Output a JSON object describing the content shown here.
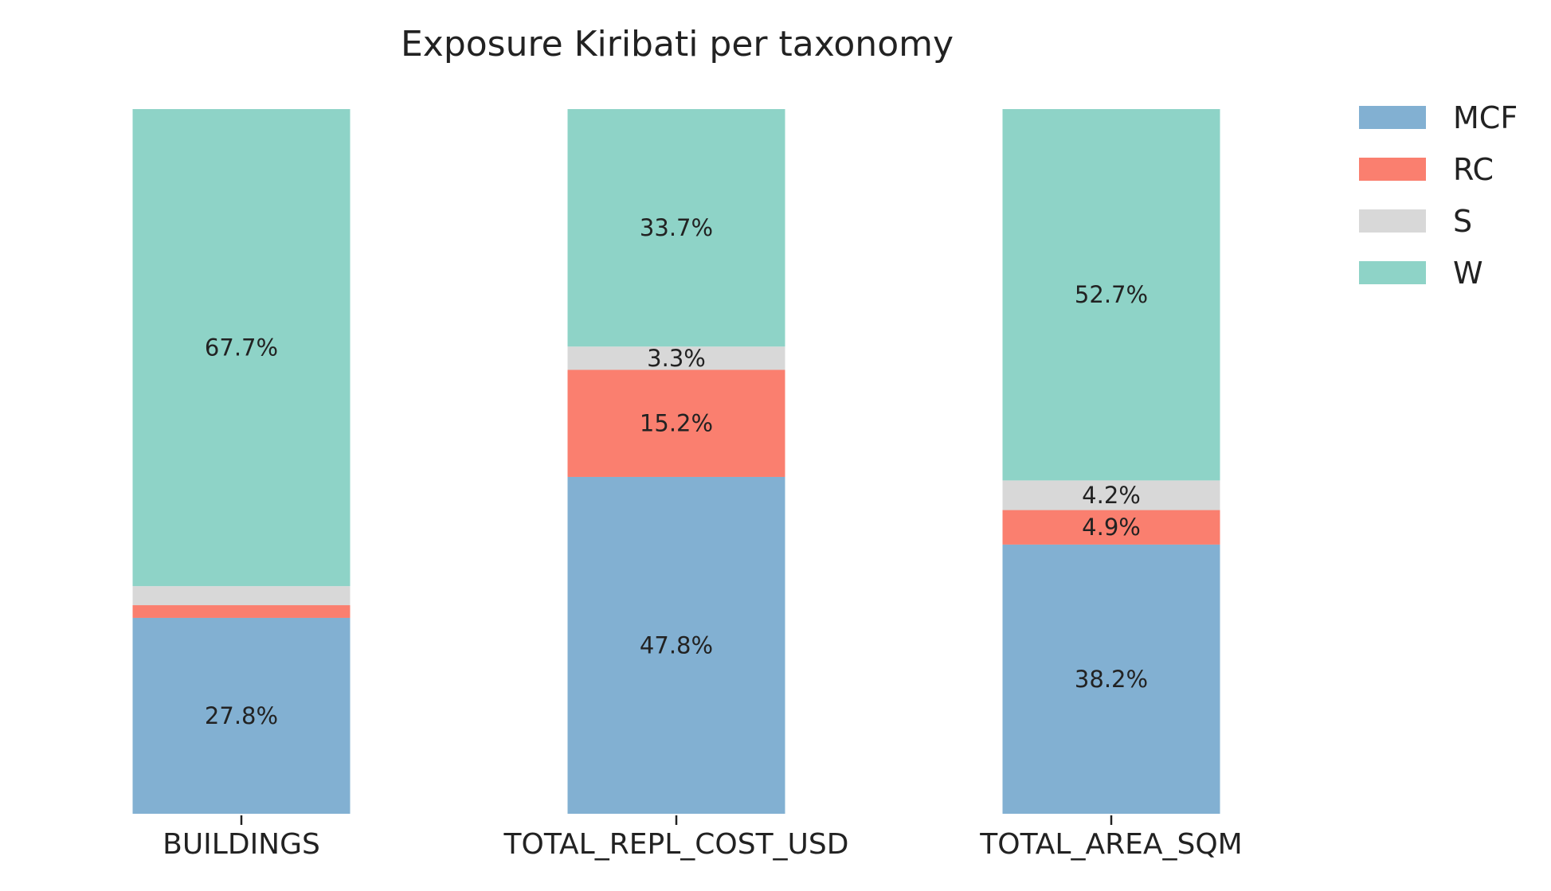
{
  "chart_data": {
    "type": "bar",
    "stacked": true,
    "normalized": true,
    "title": "Exposure Kiribati per taxonomy",
    "xlabel": "",
    "ylabel": "",
    "categories": [
      "BUILDINGS",
      "TOTAL_REPL_COST_USD",
      "TOTAL_AREA_SQM"
    ],
    "ylim": [
      0,
      100
    ],
    "grid": false,
    "legend_position": "top-right",
    "series": [
      {
        "name": "MCF",
        "color": "#82b0d2",
        "values": [
          27.8,
          47.8,
          38.2
        ],
        "labels": [
          "27.8%",
          "47.8%",
          "38.2%"
        ]
      },
      {
        "name": "RC",
        "color": "#fa7f6f",
        "values": [
          1.8,
          15.2,
          4.9
        ],
        "labels": [
          "",
          "15.2%",
          "4.9%"
        ]
      },
      {
        "name": "S",
        "color": "#d8d8d8",
        "values": [
          2.7,
          3.3,
          4.2
        ],
        "labels": [
          "",
          "3.3%",
          "4.2%"
        ]
      },
      {
        "name": "W",
        "color": "#8ed3c7",
        "values": [
          67.7,
          33.7,
          52.7
        ],
        "labels": [
          "67.7%",
          "33.7%",
          "52.7%"
        ]
      }
    ]
  }
}
